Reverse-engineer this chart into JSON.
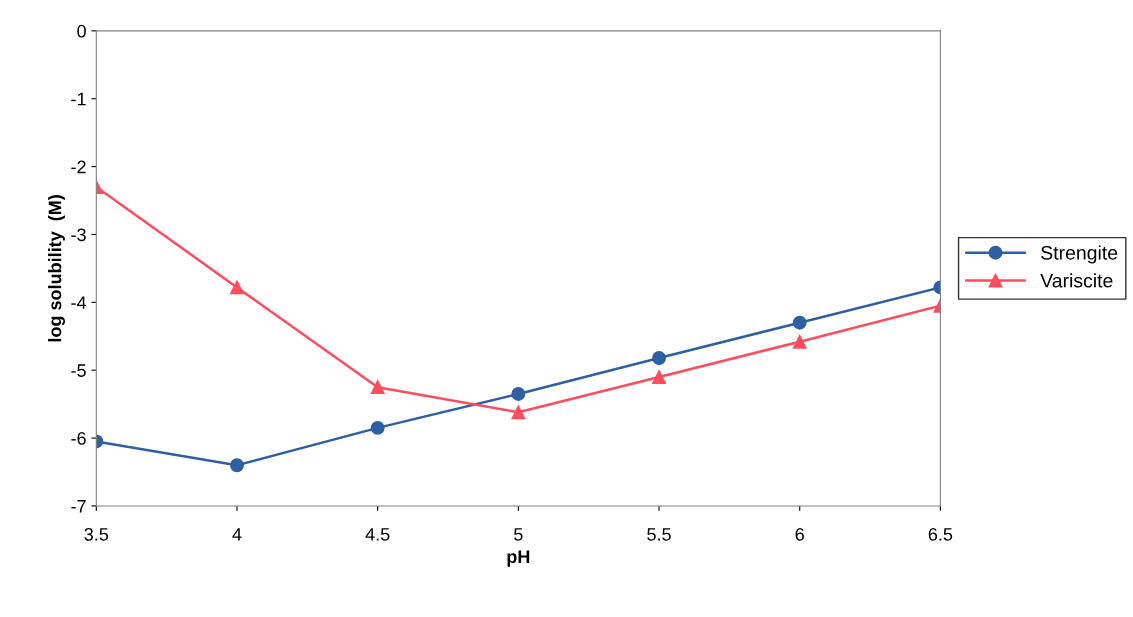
{
  "chart_data": {
    "type": "line",
    "xlabel": "pH",
    "ylabel": "log solubility  (M)",
    "x": [
      3.5,
      4,
      4.5,
      5,
      5.5,
      6,
      6.5
    ],
    "series": [
      {
        "name": "Strengite",
        "color": "#2e5fa3",
        "marker": "circle",
        "values": [
          -6.05,
          -6.4,
          -5.85,
          -5.35,
          -4.82,
          -4.3,
          -3.78
        ]
      },
      {
        "name": "Variscite",
        "color": "#ff4d5e",
        "marker": "triangle",
        "values": [
          -2.3,
          -3.78,
          -5.25,
          -5.62,
          -5.1,
          -4.58,
          -4.05
        ]
      }
    ],
    "xlim": [
      3.5,
      6.5
    ],
    "xticks": [
      3.5,
      4,
      4.5,
      5,
      5.5,
      6,
      6.5
    ],
    "ylim": [
      -7,
      0
    ],
    "yticks": [
      -7,
      -6,
      -5,
      -4,
      -3,
      -2,
      -1,
      0
    ],
    "grid": false,
    "legend": "right",
    "line_style": "solid"
  }
}
